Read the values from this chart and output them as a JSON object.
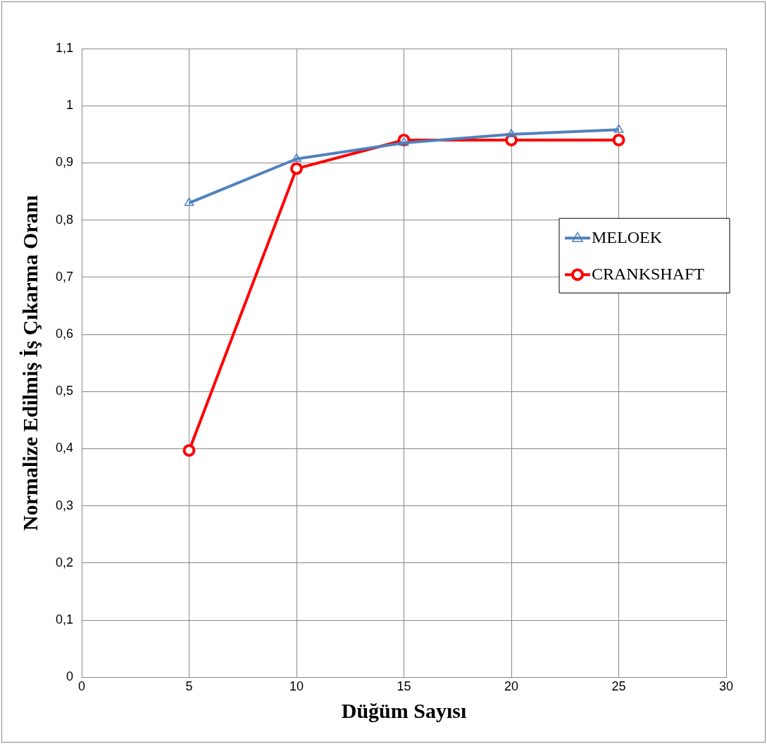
{
  "chart_data": {
    "type": "line",
    "xlabel": "Düğüm Sayısı",
    "ylabel": "Normalize Edilmiş İş Çıkarma Oranı",
    "x": [
      5,
      10,
      15,
      20,
      25
    ],
    "series": [
      {
        "name": "MELOEK",
        "color": "#4f81bd",
        "marker": "triangle",
        "values": [
          0.83,
          0.907,
          0.935,
          0.95,
          0.958
        ]
      },
      {
        "name": "CRANKSHAFT",
        "color": "#ff0000",
        "marker": "circle",
        "values": [
          0.397,
          0.89,
          0.94,
          0.94,
          0.94
        ]
      }
    ],
    "xlim": [
      0,
      30
    ],
    "xticks": [
      0,
      5,
      10,
      15,
      20,
      25,
      30
    ],
    "ylim": [
      0,
      1.1
    ],
    "yticks": [
      0,
      {
        "value": 0.1,
        "label": "0,1"
      },
      {
        "value": 0.2,
        "label": "0,2"
      },
      {
        "value": 0.3,
        "label": "0,3"
      },
      {
        "value": 0.4,
        "label": "0,4"
      },
      {
        "value": 0.5,
        "label": "0,5"
      },
      {
        "value": 0.6,
        "label": "0,6"
      },
      {
        "value": 0.7,
        "label": "0,7"
      },
      {
        "value": 0.8,
        "label": "0,8"
      },
      {
        "value": 0.9,
        "label": "0,9"
      },
      1,
      {
        "value": 1.1,
        "label": "1,1"
      }
    ],
    "grid": true,
    "legend": "right",
    "line_style": "solid"
  }
}
